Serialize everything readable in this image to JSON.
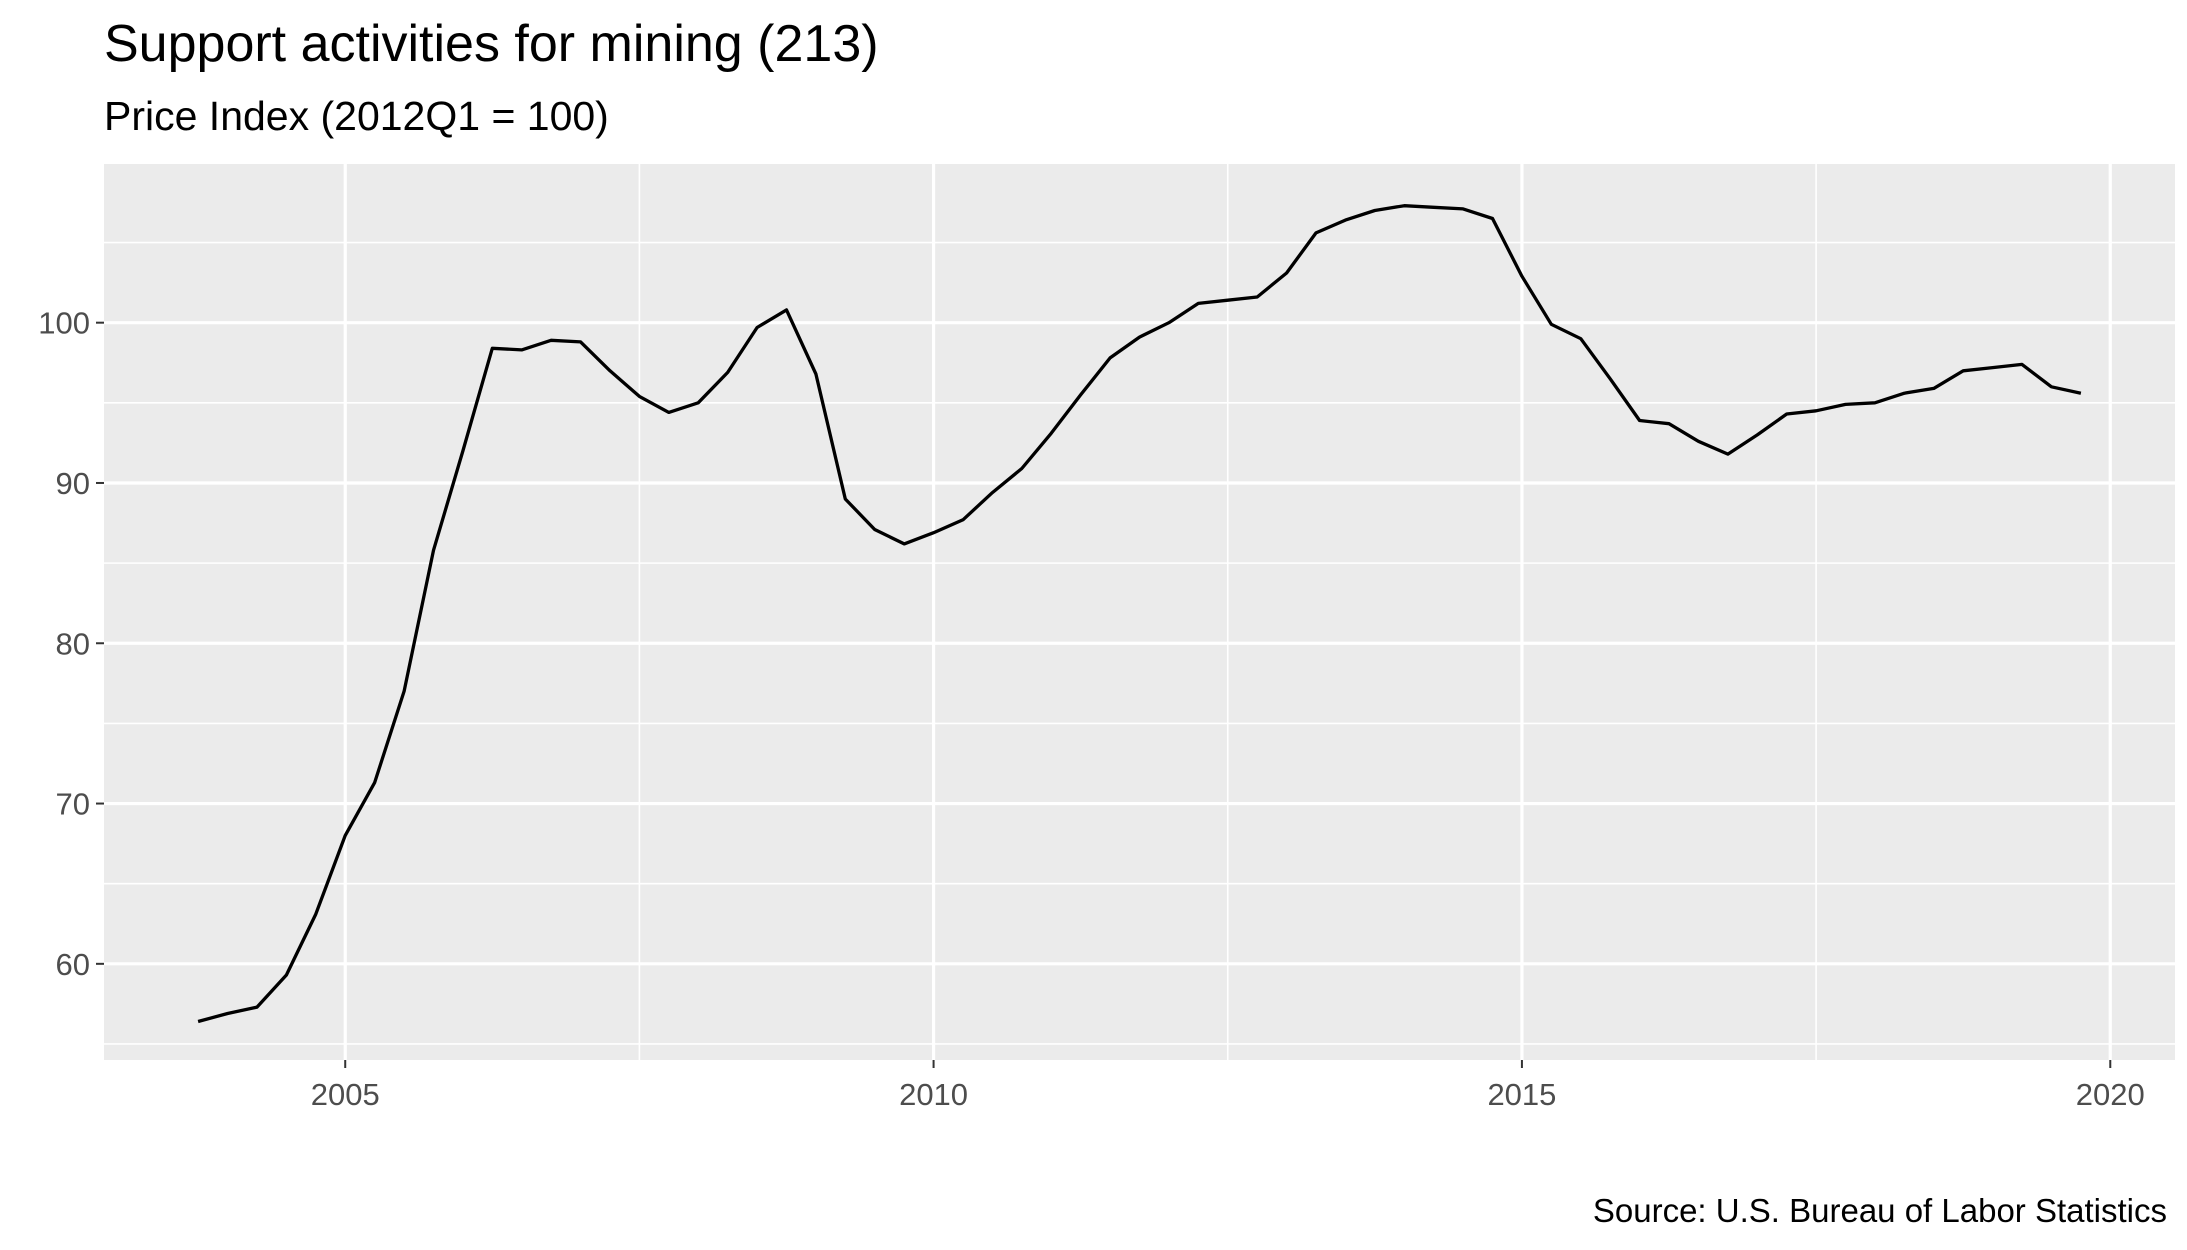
{
  "chart_data": {
    "type": "line",
    "title": "Support activities for mining (213)",
    "subtitle": "Price Index (2012Q1 = 100)",
    "caption": "Source: U.S. Bureau of Labor Statistics",
    "xlabel": "",
    "ylabel": "",
    "xlim": [
      2002.95,
      2020.55
    ],
    "ylim": [
      54.0,
      109.9
    ],
    "x_ticks": [
      2005,
      2010,
      2015,
      2020
    ],
    "x_tick_labels": [
      "2005",
      "2010",
      "2015",
      "2020"
    ],
    "y_ticks": [
      60,
      70,
      80,
      90,
      100
    ],
    "y_tick_labels": [
      "60",
      "70",
      "80",
      "90",
      "100"
    ],
    "grid": true,
    "background": "#ebebeb",
    "line_color": "#000000",
    "series": [
      {
        "x": [
          2003.75,
          2004.0,
          2004.25,
          2004.5,
          2004.75,
          2005.0,
          2005.25,
          2005.5,
          2005.75,
          2006.0,
          2006.25,
          2006.5,
          2006.75,
          2007.0,
          2007.25,
          2007.5,
          2007.75,
          2008.0,
          2008.25,
          2008.5,
          2008.75,
          2009.0,
          2009.25,
          2009.5,
          2009.75,
          2010.0,
          2010.25,
          2010.5,
          2010.75,
          2011.0,
          2011.25,
          2011.5,
          2011.75,
          2012.0,
          2012.25,
          2012.5,
          2012.75,
          2013.0,
          2013.25,
          2013.5,
          2013.75,
          2014.0,
          2014.25,
          2014.5,
          2014.75,
          2015.0,
          2015.25,
          2015.5,
          2015.75,
          2016.0,
          2016.25,
          2016.5,
          2016.75,
          2017.0,
          2017.25,
          2017.5,
          2017.75,
          2018.0,
          2018.25,
          2018.5,
          2018.75,
          2019.0,
          2019.25,
          2019.5,
          2019.75
        ],
        "values": [
          56.4,
          56.9,
          57.3,
          59.3,
          63.1,
          68.0,
          71.3,
          77.0,
          85.8,
          92.0,
          98.4,
          98.3,
          98.9,
          98.8,
          97.0,
          95.4,
          94.4,
          95.0,
          96.9,
          99.7,
          100.8,
          96.8,
          89.0,
          87.1,
          86.2,
          86.9,
          87.7,
          89.4,
          90.9,
          93.1,
          95.5,
          97.8,
          99.1,
          100.0,
          101.2,
          101.4,
          101.6,
          103.1,
          105.6,
          106.4,
          107.0,
          107.3,
          107.2,
          107.1,
          106.5,
          102.9,
          99.9,
          99.0,
          96.5,
          93.9,
          93.7,
          92.6,
          91.8,
          93.0,
          94.3,
          94.5,
          94.9,
          95.0,
          95.6,
          95.9,
          97.0,
          97.2,
          97.4,
          96.0,
          95.6
        ]
      }
    ]
  }
}
